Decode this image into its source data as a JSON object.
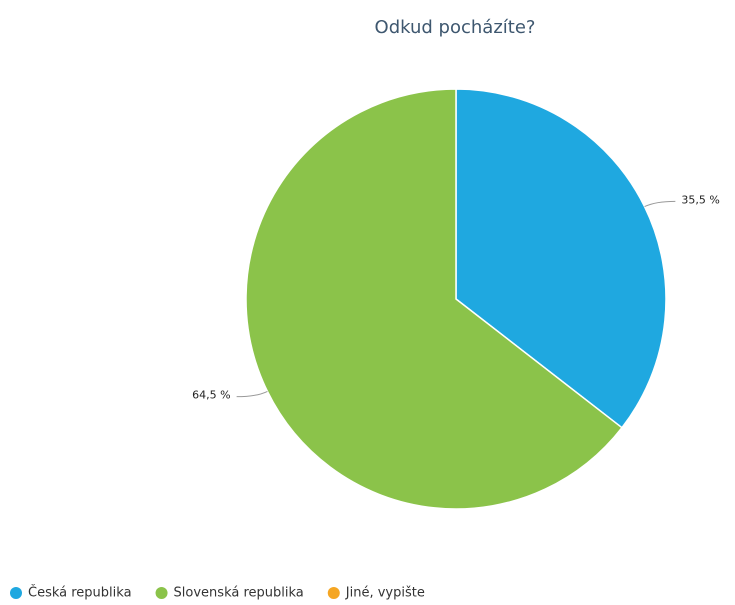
{
  "chart_data": {
    "type": "pie",
    "title": "Odkud pocházíte?",
    "categories": [
      "Česká republika",
      "Slovenská republika",
      "Jiné, vypište"
    ],
    "values": [
      35.5,
      64.5,
      0
    ],
    "value_labels": [
      "35,5 %",
      "64,5 %",
      null
    ],
    "colors": [
      "#1fa8e0",
      "#8bc34a",
      "#f5a623"
    ]
  }
}
